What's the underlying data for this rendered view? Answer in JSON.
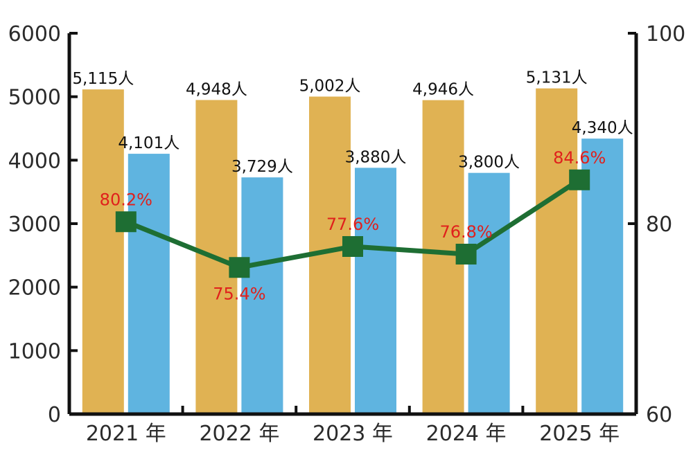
{
  "chart_data": {
    "type": "bar",
    "categories": [
      "2021 年",
      "2022 年",
      "2023 年",
      "2024 年",
      "2025 年"
    ],
    "series": [
      {
        "values": [
          5115,
          4948,
          5002,
          4946,
          5131
        ],
        "labels": [
          "5,115人",
          "4,948人",
          "5,002人",
          "4,946人",
          "5,131人"
        ],
        "color": "#e0b253",
        "axis": "left"
      },
      {
        "values": [
          4101,
          3729,
          3880,
          3800,
          4340
        ],
        "labels": [
          "4,101人",
          "3,729人",
          "3,880人",
          "3,800人",
          "4,340人"
        ],
        "color": "#5fb4e0",
        "axis": "left"
      },
      {
        "type": "line",
        "values": [
          80.2,
          75.4,
          77.6,
          76.8,
          84.6
        ],
        "labels": [
          "80.2%",
          "75.4%",
          "77.6%",
          "76.8%",
          "84.6%"
        ],
        "color": "#1e6e33",
        "label_color": "#e0201c",
        "axis": "right"
      }
    ],
    "y_left": {
      "ylim": [
        0,
        6000
      ],
      "ticks": [
        "0",
        "1000",
        "2000",
        "3000",
        "4000",
        "5000",
        "6000"
      ]
    },
    "y_right": {
      "ylim": [
        60,
        100
      ],
      "ticks": [
        "60",
        "80",
        "100"
      ]
    },
    "grid": false,
    "legend": "none"
  }
}
